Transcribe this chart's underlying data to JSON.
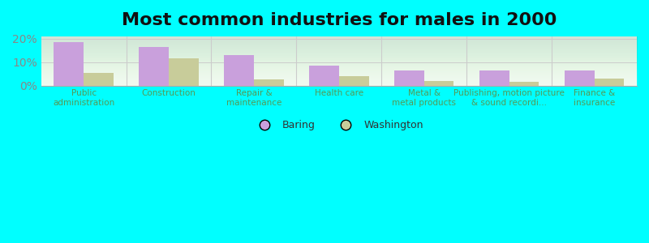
{
  "title": "Most common industries for males in 2000",
  "categories": [
    "Public\nadministration",
    "Construction",
    "Repair &\nmaintenance",
    "Health care",
    "Metal &\nmetal products",
    "Publishing, motion picture\n& sound recordi...",
    "Finance &\ninsurance"
  ],
  "baring_values": [
    18.5,
    16.5,
    13.0,
    8.5,
    6.5,
    6.5,
    6.5
  ],
  "washington_values": [
    5.5,
    11.5,
    2.5,
    4.0,
    2.0,
    1.5,
    3.0
  ],
  "baring_color": "#c9a0dc",
  "washington_color": "#c8cc9a",
  "background_color": "#00ffff",
  "plot_bg_color": "#f0faf0",
  "ylim": [
    0,
    21
  ],
  "yticks": [
    0,
    10,
    20
  ],
  "ytick_labels": [
    "0%",
    "10%",
    "20%"
  ],
  "bar_width": 0.35,
  "title_fontsize": 16,
  "legend_labels": [
    "Baring",
    "Washington"
  ]
}
